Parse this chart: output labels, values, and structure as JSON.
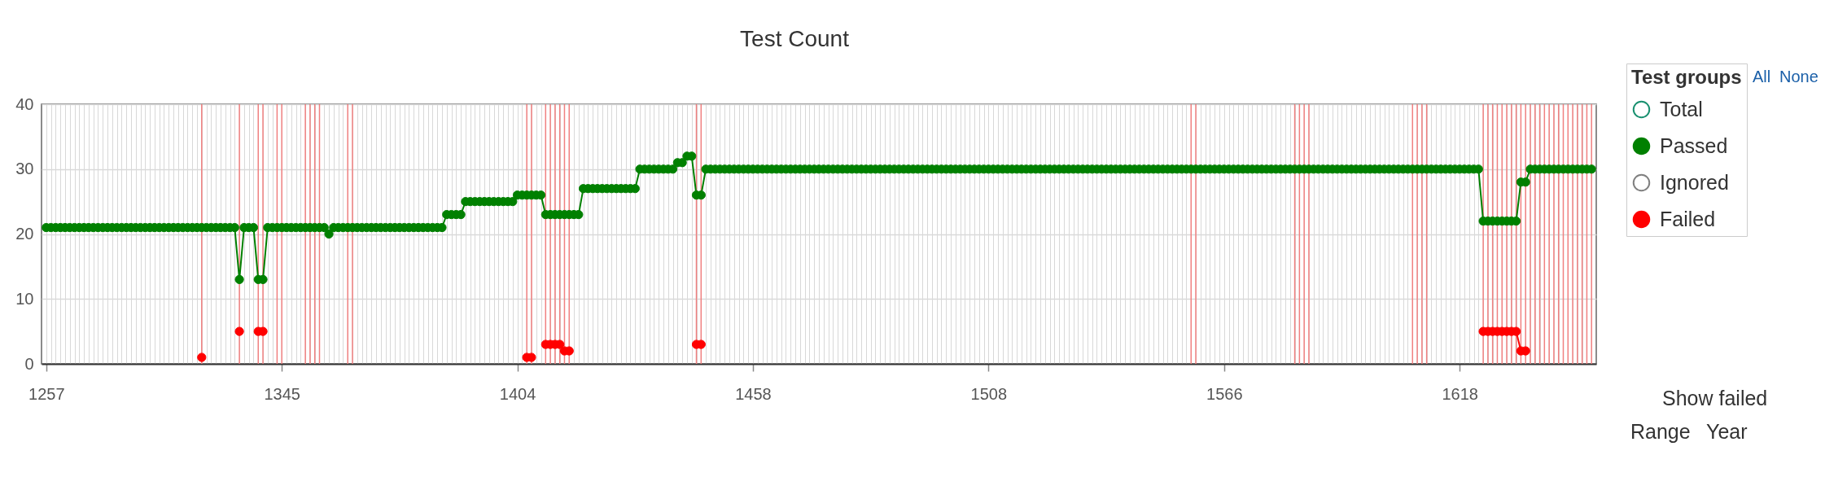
{
  "chart_data": {
    "type": "line",
    "title": "Test Count",
    "legend_title": "Test groups",
    "annotations": [
      "All",
      "None",
      "Show failed",
      "Range",
      "Year"
    ],
    "categories": [
      "1257",
      null,
      null,
      null,
      null,
      null,
      null,
      null,
      null,
      null,
      null,
      null,
      null,
      null,
      null,
      null,
      null,
      null,
      null,
      null,
      null,
      null,
      null,
      null,
      null,
      null,
      null,
      null,
      null,
      null,
      null,
      null,
      null,
      null,
      null,
      null,
      null,
      null,
      null,
      null,
      null,
      null,
      null,
      null,
      null,
      null,
      null,
      null,
      null,
      null,
      "1345",
      null,
      null,
      null,
      null,
      null,
      null,
      null,
      null,
      null,
      null,
      null,
      null,
      null,
      null,
      null,
      null,
      null,
      null,
      null,
      null,
      null,
      null,
      null,
      null,
      null,
      null,
      null,
      null,
      null,
      null,
      null,
      null,
      null,
      null,
      null,
      null,
      null,
      null,
      null,
      null,
      null,
      null,
      null,
      null,
      null,
      null,
      null,
      null,
      null,
      "1404",
      null,
      null,
      null,
      null,
      null,
      null,
      null,
      null,
      null,
      null,
      null,
      null,
      null,
      null,
      null,
      null,
      null,
      null,
      null,
      null,
      null,
      null,
      null,
      null,
      null,
      null,
      null,
      null,
      null,
      null,
      null,
      null,
      null,
      null,
      null,
      null,
      null,
      null,
      null,
      null,
      null,
      null,
      null,
      null,
      null,
      null,
      null,
      null,
      null,
      "1458",
      null,
      null,
      null,
      null,
      null,
      null,
      null,
      null,
      null,
      null,
      null,
      null,
      null,
      null,
      null,
      null,
      null,
      null,
      null,
      null,
      null,
      null,
      null,
      null,
      null,
      null,
      null,
      null,
      null,
      null,
      null,
      null,
      null,
      null,
      null,
      null,
      null,
      null,
      null,
      null,
      null,
      null,
      null,
      null,
      null,
      null,
      null,
      null,
      null,
      "1508",
      null,
      null,
      null,
      null,
      null,
      null,
      null,
      null,
      null,
      null,
      null,
      null,
      null,
      null,
      null,
      null,
      null,
      null,
      null,
      null,
      null,
      null,
      null,
      null,
      null,
      null,
      null,
      null,
      null,
      null,
      null,
      null,
      null,
      null,
      null,
      null,
      null,
      null,
      null,
      null,
      null,
      null,
      null,
      null,
      null,
      null,
      null,
      null,
      null,
      "1566",
      null,
      null,
      null,
      null,
      null,
      null,
      null,
      null,
      null,
      null,
      null,
      null,
      null,
      null,
      null,
      null,
      null,
      null,
      null,
      null,
      null,
      null,
      null,
      null,
      null,
      null,
      null,
      null,
      null,
      null,
      null,
      null,
      null,
      null,
      null,
      null,
      null,
      null,
      null,
      null,
      null,
      null,
      null,
      null,
      null,
      null,
      null,
      null,
      null,
      "1618",
      null,
      null,
      null,
      null,
      null,
      null,
      null,
      null,
      null,
      null,
      null,
      null,
      null,
      null,
      null,
      null,
      null,
      null,
      null,
      null,
      null,
      null,
      null,
      null,
      null,
      null,
      null,
      null
    ],
    "series": [
      {
        "name": "Total",
        "color": "#1a9070",
        "values": [
          null,
          null,
          null,
          null,
          null,
          null,
          null,
          null,
          null,
          null,
          null,
          null,
          null,
          null,
          null,
          null,
          null,
          null,
          null,
          null,
          null,
          null,
          null,
          null,
          null,
          null,
          null,
          null,
          null,
          null,
          null,
          null,
          null,
          null,
          null,
          null,
          null,
          null,
          null,
          null,
          null,
          null,
          null,
          null,
          null,
          null,
          null,
          null,
          null,
          null,
          null,
          null,
          null,
          null,
          null,
          null,
          null,
          null,
          null,
          null,
          null,
          null,
          null,
          null,
          null,
          null,
          null,
          null,
          null,
          null,
          null,
          null,
          null,
          null,
          null,
          null,
          null,
          null,
          null,
          null,
          null,
          null,
          null,
          null,
          null,
          null,
          null,
          null,
          null,
          null,
          null,
          null,
          null,
          null,
          null,
          null,
          null,
          null,
          null,
          null,
          null,
          null,
          null,
          null,
          null,
          null,
          null,
          null,
          null,
          null,
          null,
          null,
          null,
          null,
          null,
          null,
          null,
          null,
          null,
          null,
          null,
          null,
          null,
          null,
          null,
          null,
          null,
          null,
          null,
          null,
          null,
          null,
          null,
          null,
          null,
          null,
          null,
          null,
          null,
          null,
          null,
          null,
          null,
          null,
          null,
          null,
          null,
          null,
          null,
          null,
          null,
          null,
          null,
          null,
          null,
          null,
          null,
          null,
          null,
          null,
          null,
          null,
          null,
          null,
          null,
          null,
          null,
          null,
          null,
          null,
          null,
          null,
          null,
          null,
          null,
          null,
          null,
          null,
          null,
          null,
          null,
          null,
          null,
          null,
          null,
          null,
          null,
          null,
          null,
          null,
          null,
          null,
          null,
          null,
          null,
          null,
          null,
          null,
          null,
          null,
          null,
          null,
          null,
          null,
          null,
          null,
          null,
          null,
          null,
          null,
          null,
          null,
          null,
          null,
          null,
          null,
          null,
          null,
          null,
          null,
          null,
          null,
          null,
          null,
          null,
          null,
          null,
          null,
          null,
          null,
          null,
          null,
          null,
          null,
          null,
          null,
          null,
          null,
          null,
          null,
          null,
          null,
          null,
          null,
          null,
          null,
          null,
          null,
          null,
          null,
          null,
          null,
          null,
          null,
          null,
          null,
          null,
          null,
          null,
          null,
          null,
          null,
          null,
          null,
          null,
          null,
          null,
          null,
          null,
          null,
          null,
          null,
          null,
          null,
          null,
          null,
          null,
          null,
          null,
          null,
          null,
          null,
          null,
          null,
          null,
          null,
          null,
          null,
          null,
          null,
          null,
          null,
          null,
          null,
          null,
          null,
          null,
          null,
          null,
          null,
          null,
          null,
          null,
          null,
          null,
          null,
          null,
          null,
          null,
          null,
          null,
          null,
          null,
          null,
          null,
          null,
          null,
          null,
          null,
          null,
          null,
          null,
          null,
          null,
          null,
          null,
          null,
          null,
          null
        ]
      },
      {
        "name": "Passed",
        "color": "#008000",
        "values": [
          21,
          21,
          21,
          21,
          21,
          21,
          21,
          21,
          21,
          21,
          21,
          21,
          21,
          21,
          21,
          21,
          21,
          21,
          21,
          21,
          21,
          21,
          21,
          21,
          21,
          21,
          21,
          21,
          21,
          21,
          21,
          21,
          21,
          21,
          21,
          21,
          21,
          21,
          21,
          21,
          21,
          13,
          21,
          21,
          21,
          13,
          13,
          21,
          21,
          21,
          21,
          21,
          21,
          21,
          21,
          21,
          21,
          21,
          21,
          21,
          20,
          21,
          21,
          21,
          21,
          21,
          21,
          21,
          21,
          21,
          21,
          21,
          21,
          21,
          21,
          21,
          21,
          21,
          21,
          21,
          21,
          21,
          21,
          21,
          21,
          23,
          23,
          23,
          23,
          25,
          25,
          25,
          25,
          25,
          25,
          25,
          25,
          25,
          25,
          25,
          26,
          26,
          26,
          26,
          26,
          26,
          23,
          23,
          23,
          23,
          23,
          23,
          23,
          23,
          27,
          27,
          27,
          27,
          27,
          27,
          27,
          27,
          27,
          27,
          27,
          27,
          30,
          30,
          30,
          30,
          30,
          30,
          30,
          30,
          31,
          31,
          32,
          32,
          26,
          26,
          30,
          30,
          30,
          30,
          30,
          30,
          30,
          30,
          30,
          30,
          30,
          30,
          30,
          30,
          30,
          30,
          30,
          30,
          30,
          30,
          30,
          30,
          30,
          30,
          30,
          30,
          30,
          30,
          30,
          30,
          30,
          30,
          30,
          30,
          30,
          30,
          30,
          30,
          30,
          30,
          30,
          30,
          30,
          30,
          30,
          30,
          30,
          30,
          30,
          30,
          30,
          30,
          30,
          30,
          30,
          30,
          30,
          30,
          30,
          30,
          30,
          30,
          30,
          30,
          30,
          30,
          30,
          30,
          30,
          30,
          30,
          30,
          30,
          30,
          30,
          30,
          30,
          30,
          30,
          30,
          30,
          30,
          30,
          30,
          30,
          30,
          30,
          30,
          30,
          30,
          30,
          30,
          30,
          30,
          30,
          30,
          30,
          30,
          30,
          30,
          30,
          30,
          30,
          30,
          30,
          30,
          30,
          30,
          30,
          30,
          30,
          30,
          30,
          30,
          30,
          30,
          30,
          30,
          30,
          30,
          30,
          30,
          30,
          30,
          30,
          30,
          30,
          30,
          30,
          30,
          30,
          30,
          30,
          30,
          30,
          30,
          30,
          30,
          30,
          30,
          30,
          30,
          30,
          30,
          30,
          30,
          30,
          30,
          30,
          30,
          30,
          30,
          30,
          30,
          30,
          30,
          30,
          30,
          30,
          30,
          30,
          30,
          30,
          30,
          30,
          22,
          22,
          22,
          22,
          22,
          22,
          22,
          22,
          28,
          28,
          30,
          30,
          30,
          30,
          30,
          30,
          30,
          30,
          30,
          30,
          30,
          30,
          30,
          30
        ]
      },
      {
        "name": "Ignored",
        "color": "#808080",
        "values": [
          null,
          null,
          null,
          null,
          null,
          null,
          null,
          null,
          null,
          null,
          null,
          null,
          null,
          null,
          null,
          null,
          null,
          null,
          null,
          null,
          null,
          null,
          null,
          null,
          null,
          null,
          null,
          null,
          null,
          null,
          null,
          null,
          null,
          null,
          null,
          null,
          null,
          null,
          null,
          null,
          null,
          null,
          null,
          null,
          null,
          null,
          null,
          null,
          null,
          null,
          null,
          null,
          null,
          null,
          null,
          null,
          null,
          null,
          null,
          null,
          null,
          null,
          null,
          null,
          null,
          null,
          null,
          null,
          null,
          null,
          null,
          null,
          null,
          null,
          null,
          null,
          null,
          null,
          null,
          null,
          null,
          null,
          null,
          null,
          null,
          null,
          null,
          null,
          null,
          null,
          null,
          null,
          null,
          null,
          null,
          null,
          null,
          null,
          null,
          null,
          null,
          null,
          null,
          null,
          null,
          null,
          null,
          null,
          null,
          null,
          null,
          null,
          null,
          null,
          null,
          null,
          null,
          null,
          null,
          null,
          null,
          null,
          null,
          null,
          null,
          null,
          null,
          null,
          null,
          null,
          null,
          null,
          null,
          null,
          null,
          null,
          null,
          null,
          null,
          null,
          null,
          null,
          null,
          null,
          null,
          null,
          null,
          null,
          null,
          null,
          null,
          null,
          null,
          null,
          null,
          null,
          null,
          null,
          null,
          null,
          null,
          null,
          null,
          null,
          null,
          null,
          null,
          null,
          null,
          null,
          null,
          null,
          null,
          null,
          null,
          null,
          null,
          null,
          null,
          null,
          null,
          null,
          null,
          null,
          null,
          null,
          null,
          null,
          null,
          null,
          null,
          null,
          null,
          null,
          null,
          null,
          null,
          null,
          null,
          null,
          null,
          null,
          null,
          null,
          null,
          null,
          null,
          null,
          null,
          null,
          null,
          null,
          null,
          null,
          null,
          null,
          null,
          null,
          null,
          null,
          null,
          null,
          null,
          null,
          null,
          null,
          null,
          null,
          null,
          null,
          null,
          null,
          null,
          null,
          null,
          null,
          null,
          null,
          null,
          null,
          null,
          null,
          null,
          null,
          null,
          null,
          null,
          null,
          null,
          null,
          null,
          null,
          null,
          null,
          null,
          null,
          null,
          null,
          null,
          null,
          null,
          null,
          null,
          null,
          null,
          null,
          null,
          null,
          null,
          null,
          null,
          null,
          null,
          null,
          null,
          null,
          null,
          null,
          null,
          null,
          null,
          null,
          null,
          null,
          null,
          null,
          null,
          null,
          null,
          null,
          null,
          null,
          null,
          null,
          null,
          null,
          null,
          null,
          null,
          null,
          null,
          null,
          null,
          null,
          null,
          null,
          null,
          null,
          null,
          null,
          null,
          null,
          null,
          null,
          null,
          null,
          null,
          null,
          null,
          null,
          null,
          null,
          null,
          null,
          null,
          null,
          null,
          null,
          null
        ]
      },
      {
        "name": "Failed",
        "color": "#ff0000",
        "values": [
          null,
          null,
          null,
          null,
          null,
          null,
          null,
          null,
          null,
          null,
          null,
          null,
          null,
          null,
          null,
          null,
          null,
          null,
          null,
          null,
          null,
          null,
          null,
          null,
          null,
          null,
          null,
          null,
          null,
          null,
          null,
          null,
          null,
          1,
          null,
          null,
          null,
          null,
          null,
          null,
          null,
          5,
          null,
          null,
          null,
          5,
          5,
          null,
          null,
          null,
          null,
          null,
          null,
          null,
          null,
          null,
          null,
          null,
          null,
          null,
          null,
          null,
          null,
          null,
          null,
          null,
          null,
          null,
          null,
          null,
          null,
          null,
          null,
          null,
          null,
          null,
          null,
          null,
          null,
          null,
          null,
          null,
          null,
          null,
          null,
          null,
          null,
          null,
          null,
          null,
          null,
          null,
          null,
          null,
          null,
          null,
          null,
          null,
          null,
          null,
          null,
          null,
          1,
          1,
          null,
          null,
          3,
          3,
          3,
          3,
          2,
          2,
          null,
          null,
          null,
          null,
          null,
          null,
          null,
          null,
          null,
          null,
          null,
          null,
          null,
          null,
          null,
          null,
          null,
          null,
          null,
          null,
          null,
          null,
          null,
          null,
          null,
          null,
          3,
          3,
          null,
          null,
          null,
          null,
          null,
          null,
          null,
          null,
          null,
          null,
          null,
          null,
          null,
          null,
          null,
          null,
          null,
          null,
          null,
          null,
          null,
          null,
          null,
          null,
          null,
          null,
          null,
          null,
          null,
          null,
          null,
          null,
          null,
          null,
          null,
          null,
          null,
          null,
          null,
          null,
          null,
          null,
          null,
          null,
          null,
          null,
          null,
          null,
          null,
          null,
          null,
          null,
          null,
          null,
          null,
          null,
          null,
          null,
          null,
          null,
          null,
          null,
          null,
          null,
          null,
          null,
          null,
          null,
          null,
          null,
          null,
          null,
          null,
          null,
          null,
          null,
          null,
          null,
          null,
          null,
          null,
          null,
          null,
          null,
          null,
          null,
          null,
          null,
          null,
          null,
          null,
          null,
          null,
          null,
          null,
          null,
          null,
          null,
          null,
          null,
          null,
          null,
          null,
          null,
          null,
          null,
          null,
          null,
          null,
          null,
          null,
          null,
          null,
          null,
          null,
          null,
          null,
          null,
          null,
          null,
          null,
          null,
          null,
          null,
          null,
          null,
          null,
          null,
          null,
          null,
          null,
          null,
          null,
          null,
          null,
          null,
          null,
          null,
          null,
          null,
          null,
          null,
          null,
          null,
          null,
          null,
          null,
          null,
          null,
          null,
          null,
          null,
          null,
          null,
          null,
          null,
          null,
          null,
          null,
          null,
          null,
          null,
          null,
          null,
          null,
          5,
          5,
          5,
          5,
          5,
          5,
          5,
          5,
          2,
          2,
          null,
          null,
          null,
          null,
          null,
          null,
          null,
          null,
          null,
          null,
          null,
          null,
          null,
          null
        ]
      }
    ],
    "ylim": [
      0,
      40
    ],
    "yticks": [
      0,
      10,
      20,
      30,
      40
    ],
    "grid": true,
    "legend": "right",
    "marker": "circle"
  }
}
